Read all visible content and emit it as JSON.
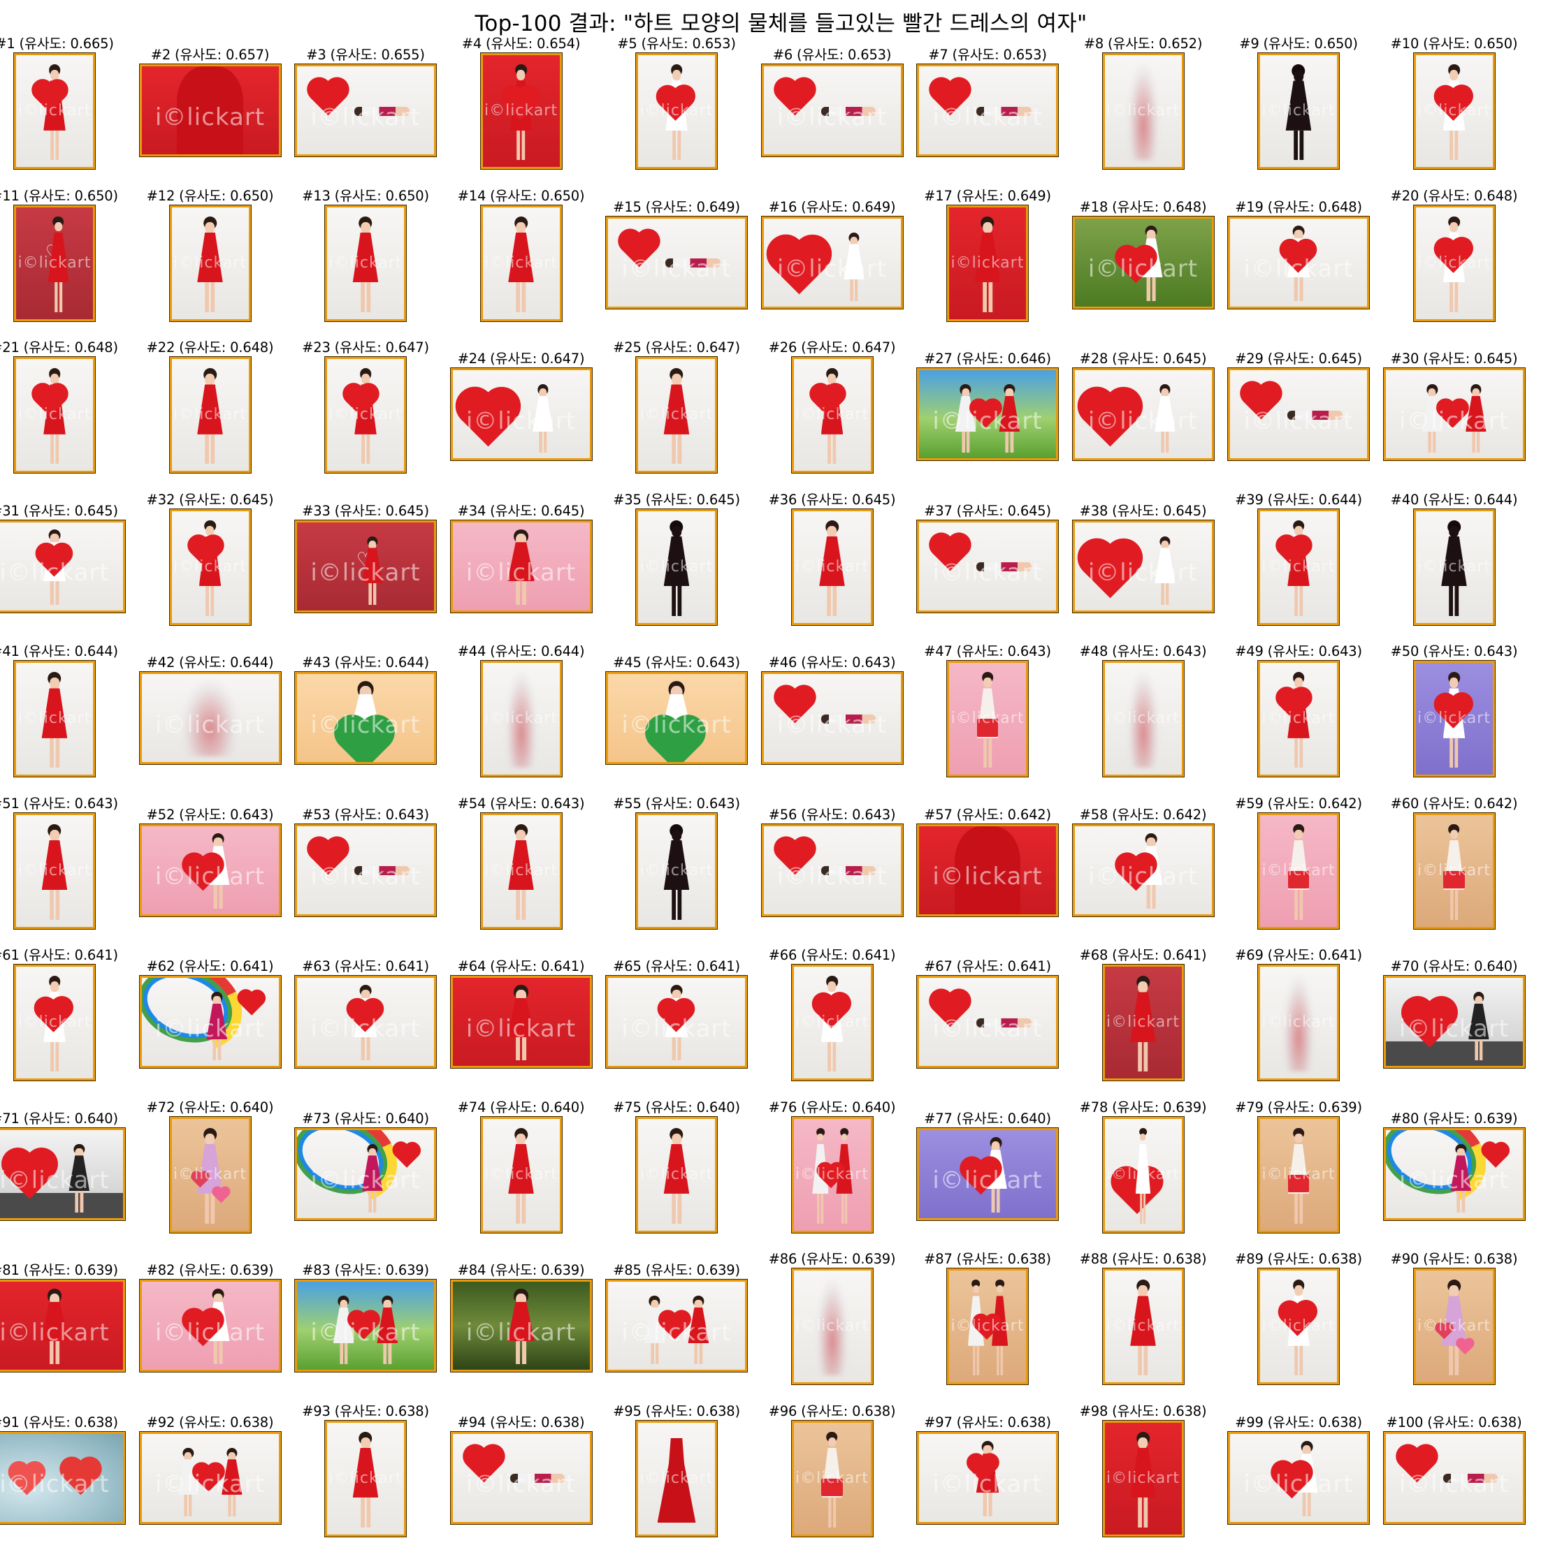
{
  "title": "Top-100 결과: \"하트 모양의 물체를 들고있는 빨간 드레스의 여자\"",
  "watermark": "i©lickart",
  "caption_prefix": "유사도",
  "results": [
    {
      "rank": 1,
      "score": "0.665",
      "caption": "#1 (유사도: 0.665)",
      "orientation": "portrait",
      "scene": "white",
      "subject": "woman-red-dress-heart"
    },
    {
      "rank": 2,
      "score": "0.657",
      "caption": "#2 (유사도: 0.657)",
      "orientation": "landscape",
      "scene": "red",
      "subject": "red-dress-closeup"
    },
    {
      "rank": 3,
      "score": "0.655",
      "caption": "#3 (유사도: 0.655)",
      "orientation": "landscape",
      "scene": "white",
      "subject": "floating-heart-balloon"
    },
    {
      "rank": 4,
      "score": "0.654",
      "caption": "#4 (유사도: 0.654)",
      "orientation": "portrait",
      "scene": "red",
      "subject": "woman-hand-heart"
    },
    {
      "rank": 5,
      "score": "0.653",
      "caption": "#5 (유사도: 0.653)",
      "orientation": "portrait",
      "scene": "white",
      "subject": "woman-heart-pillow"
    },
    {
      "rank": 6,
      "score": "0.653",
      "caption": "#6 (유사도: 0.653)",
      "orientation": "landscape",
      "scene": "white",
      "subject": "floating-heart-balloon"
    },
    {
      "rank": 7,
      "score": "0.653",
      "caption": "#7 (유사도: 0.653)",
      "orientation": "landscape",
      "scene": "white",
      "subject": "floating-heart-balloon"
    },
    {
      "rank": 8,
      "score": "0.652",
      "caption": "#8 (유사도: 0.652)",
      "orientation": "portrait",
      "scene": "white",
      "subject": "faded-silhouette"
    },
    {
      "rank": 9,
      "score": "0.650",
      "caption": "#9 (유사도: 0.650)",
      "orientation": "portrait",
      "scene": "white",
      "subject": "dark-silhouette"
    },
    {
      "rank": 10,
      "score": "0.650",
      "caption": "#10 (유사도: 0.650)",
      "orientation": "portrait",
      "scene": "white",
      "subject": "woman-heart-pillow"
    },
    {
      "rank": 11,
      "score": "0.650",
      "caption": "#11 (유사도: 0.650)",
      "orientation": "portrait",
      "scene": "darkred",
      "subject": "love-balloon"
    },
    {
      "rank": 12,
      "score": "0.650",
      "caption": "#12 (유사도: 0.650)",
      "orientation": "portrait",
      "scene": "white",
      "subject": "woman-red-dress"
    },
    {
      "rank": 13,
      "score": "0.650",
      "caption": "#13 (유사도: 0.650)",
      "orientation": "portrait",
      "scene": "white",
      "subject": "woman-red-dress"
    },
    {
      "rank": 14,
      "score": "0.650",
      "caption": "#14 (유사도: 0.650)",
      "orientation": "portrait",
      "scene": "white",
      "subject": "woman-red-dress"
    },
    {
      "rank": 15,
      "score": "0.649",
      "caption": "#15 (유사도: 0.649)",
      "orientation": "landscape",
      "scene": "white",
      "subject": "floating-heart-balloon"
    },
    {
      "rank": 16,
      "score": "0.649",
      "caption": "#16 (유사도: 0.649)",
      "orientation": "landscape",
      "scene": "white",
      "subject": "big-heart"
    },
    {
      "rank": 17,
      "score": "0.649",
      "caption": "#17 (유사도: 0.649)",
      "orientation": "portrait",
      "scene": "red",
      "subject": "woman-red-dress"
    },
    {
      "rank": 18,
      "score": "0.648",
      "caption": "#18 (유사도: 0.648)",
      "orientation": "landscape",
      "scene": "green",
      "subject": "woman-heart"
    },
    {
      "rank": 19,
      "score": "0.648",
      "caption": "#19 (유사도: 0.648)",
      "orientation": "landscape",
      "scene": "white",
      "subject": "child-heart"
    },
    {
      "rank": 20,
      "score": "0.648",
      "caption": "#20 (유사도: 0.648)",
      "orientation": "portrait",
      "scene": "white",
      "subject": "woman-heart-balloon"
    },
    {
      "rank": 21,
      "score": "0.648",
      "caption": "#21 (유사도: 0.648)",
      "orientation": "portrait",
      "scene": "white",
      "subject": "woman-red-dress-heart"
    },
    {
      "rank": 22,
      "score": "0.648",
      "caption": "#22 (유사도: 0.648)",
      "orientation": "portrait",
      "scene": "white",
      "subject": "woman-red-dress"
    },
    {
      "rank": 23,
      "score": "0.647",
      "caption": "#23 (유사도: 0.647)",
      "orientation": "portrait",
      "scene": "white",
      "subject": "woman-red-dress-heart"
    },
    {
      "rank": 24,
      "score": "0.647",
      "caption": "#24 (유사도: 0.647)",
      "orientation": "landscape",
      "scene": "white",
      "subject": "big-heart"
    },
    {
      "rank": 25,
      "score": "0.647",
      "caption": "#25 (유사도: 0.647)",
      "orientation": "portrait",
      "scene": "white",
      "subject": "woman-red-dress"
    },
    {
      "rank": 26,
      "score": "0.647",
      "caption": "#26 (유사도: 0.647)",
      "orientation": "portrait",
      "scene": "white",
      "subject": "woman-red-dress-heart"
    },
    {
      "rank": 27,
      "score": "0.646",
      "caption": "#27 (유사도: 0.646)",
      "orientation": "landscape",
      "scene": "sky",
      "subject": "couple-heart"
    },
    {
      "rank": 28,
      "score": "0.645",
      "caption": "#28 (유사도: 0.645)",
      "orientation": "landscape",
      "scene": "white",
      "subject": "big-heart"
    },
    {
      "rank": 29,
      "score": "0.645",
      "caption": "#29 (유사도: 0.645)",
      "orientation": "landscape",
      "scene": "white",
      "subject": "floating-heart-balloon"
    },
    {
      "rank": 30,
      "score": "0.645",
      "caption": "#30 (유사도: 0.645)",
      "orientation": "landscape",
      "scene": "white",
      "subject": "couple-heart"
    },
    {
      "rank": 31,
      "score": "0.645",
      "caption": "#31 (유사도: 0.645)",
      "orientation": "landscape",
      "scene": "white",
      "subject": "child-heart"
    },
    {
      "rank": 32,
      "score": "0.645",
      "caption": "#32 (유사도: 0.645)",
      "orientation": "portrait",
      "scene": "white",
      "subject": "woman-red-dress-heart"
    },
    {
      "rank": 33,
      "score": "0.645",
      "caption": "#33 (유사도: 0.645)",
      "orientation": "landscape",
      "scene": "darkred",
      "subject": "love-balloon"
    },
    {
      "rank": 34,
      "score": "0.645",
      "caption": "#34 (유사도: 0.645)",
      "orientation": "landscape",
      "scene": "pink",
      "subject": "woman-red-dress"
    },
    {
      "rank": 35,
      "score": "0.645",
      "caption": "#35 (유사도: 0.645)",
      "orientation": "portrait",
      "scene": "white",
      "subject": "dark-silhouette"
    },
    {
      "rank": 36,
      "score": "0.645",
      "caption": "#36 (유사도: 0.645)",
      "orientation": "portrait",
      "scene": "white",
      "subject": "woman-red-dress"
    },
    {
      "rank": 37,
      "score": "0.645",
      "caption": "#37 (유사도: 0.645)",
      "orientation": "landscape",
      "scene": "white",
      "subject": "floating-heart-balloon"
    },
    {
      "rank": 38,
      "score": "0.645",
      "caption": "#38 (유사도: 0.645)",
      "orientation": "landscape",
      "scene": "white",
      "subject": "big-heart"
    },
    {
      "rank": 39,
      "score": "0.644",
      "caption": "#39 (유사도: 0.644)",
      "orientation": "portrait",
      "scene": "white",
      "subject": "woman-red-dress-heart"
    },
    {
      "rank": 40,
      "score": "0.644",
      "caption": "#40 (유사도: 0.644)",
      "orientation": "portrait",
      "scene": "white",
      "subject": "dark-silhouette"
    },
    {
      "rank": 41,
      "score": "0.644",
      "caption": "#41 (유사도: 0.644)",
      "orientation": "portrait",
      "scene": "white",
      "subject": "woman-red-dress"
    },
    {
      "rank": 42,
      "score": "0.644",
      "caption": "#42 (유사도: 0.644)",
      "orientation": "landscape",
      "scene": "white",
      "subject": "faded-silhouette"
    },
    {
      "rank": 43,
      "score": "0.644",
      "caption": "#43 (유사도: 0.644)",
      "orientation": "landscape",
      "scene": "orange",
      "subject": "child-green-heart"
    },
    {
      "rank": 44,
      "score": "0.644",
      "caption": "#44 (유사도: 0.644)",
      "orientation": "portrait",
      "scene": "white",
      "subject": "faded-silhouette"
    },
    {
      "rank": 45,
      "score": "0.643",
      "caption": "#45 (유사도: 0.643)",
      "orientation": "landscape",
      "scene": "orange",
      "subject": "child-green-heart"
    },
    {
      "rank": 46,
      "score": "0.643",
      "caption": "#46 (유사도: 0.643)",
      "orientation": "landscape",
      "scene": "white",
      "subject": "floating-heart-balloon"
    },
    {
      "rank": 47,
      "score": "0.643",
      "caption": "#47 (유사도: 0.643)",
      "orientation": "portrait",
      "scene": "pink",
      "subject": "woman-gift"
    },
    {
      "rank": 48,
      "score": "0.643",
      "caption": "#48 (유사도: 0.643)",
      "orientation": "portrait",
      "scene": "white",
      "subject": "faded-silhouette"
    },
    {
      "rank": 49,
      "score": "0.643",
      "caption": "#49 (유사도: 0.643)",
      "orientation": "portrait",
      "scene": "white",
      "subject": "woman-red-dress-heart"
    },
    {
      "rank": 50,
      "score": "0.643",
      "caption": "#50 (유사도: 0.643)",
      "orientation": "portrait",
      "scene": "purple",
      "subject": "woman-heart-balloon"
    },
    {
      "rank": 51,
      "score": "0.643",
      "caption": "#51 (유사도: 0.643)",
      "orientation": "portrait",
      "scene": "white",
      "subject": "woman-red-dress"
    },
    {
      "rank": 52,
      "score": "0.643",
      "caption": "#52 (유사도: 0.643)",
      "orientation": "landscape",
      "scene": "pink",
      "subject": "woman-heart"
    },
    {
      "rank": 53,
      "score": "0.643",
      "caption": "#53 (유사도: 0.643)",
      "orientation": "landscape",
      "scene": "white",
      "subject": "floating-heart-balloon"
    },
    {
      "rank": 54,
      "score": "0.643",
      "caption": "#54 (유사도: 0.643)",
      "orientation": "portrait",
      "scene": "white",
      "subject": "woman-red-dress"
    },
    {
      "rank": 55,
      "score": "0.643",
      "caption": "#55 (유사도: 0.643)",
      "orientation": "portrait",
      "scene": "white",
      "subject": "dark-silhouette"
    },
    {
      "rank": 56,
      "score": "0.643",
      "caption": "#56 (유사도: 0.643)",
      "orientation": "landscape",
      "scene": "white",
      "subject": "floating-heart-balloon"
    },
    {
      "rank": 57,
      "score": "0.642",
      "caption": "#57 (유사도: 0.642)",
      "orientation": "landscape",
      "scene": "red",
      "subject": "red-dress-closeup"
    },
    {
      "rank": 58,
      "score": "0.642",
      "caption": "#58 (유사도: 0.642)",
      "orientation": "landscape",
      "scene": "white",
      "subject": "woman-heart"
    },
    {
      "rank": 59,
      "score": "0.642",
      "caption": "#59 (유사도: 0.642)",
      "orientation": "portrait",
      "scene": "pink",
      "subject": "woman-gift"
    },
    {
      "rank": 60,
      "score": "0.642",
      "caption": "#60 (유사도: 0.642)",
      "orientation": "portrait",
      "scene": "tan",
      "subject": "woman-gift"
    },
    {
      "rank": 61,
      "score": "0.641",
      "caption": "#61 (유사도: 0.641)",
      "orientation": "portrait",
      "scene": "white",
      "subject": "woman-heart"
    },
    {
      "rank": 62,
      "score": "0.641",
      "caption": "#62 (유사도: 0.641)",
      "orientation": "landscape",
      "scene": "white",
      "subject": "rainbow-heart"
    },
    {
      "rank": 63,
      "score": "0.641",
      "caption": "#63 (유사도: 0.641)",
      "orientation": "landscape",
      "scene": "white",
      "subject": "child-heart"
    },
    {
      "rank": 64,
      "score": "0.641",
      "caption": "#64 (유사도: 0.641)",
      "orientation": "landscape",
      "scene": "red",
      "subject": "woman-red-dress"
    },
    {
      "rank": 65,
      "score": "0.641",
      "caption": "#65 (유사도: 0.641)",
      "orientation": "landscape",
      "scene": "white",
      "subject": "child-heart"
    },
    {
      "rank": 66,
      "score": "0.641",
      "caption": "#66 (유사도: 0.641)",
      "orientation": "portrait",
      "scene": "white",
      "subject": "child-heart"
    },
    {
      "rank": 67,
      "score": "0.641",
      "caption": "#67 (유사도: 0.641)",
      "orientation": "landscape",
      "scene": "white",
      "subject": "floating-heart-balloon"
    },
    {
      "rank": 68,
      "score": "0.641",
      "caption": "#68 (유사도: 0.641)",
      "orientation": "portrait",
      "scene": "darkred",
      "subject": "woman-red-dress"
    },
    {
      "rank": 69,
      "score": "0.641",
      "caption": "#69 (유사도: 0.641)",
      "orientation": "portrait",
      "scene": "white",
      "subject": "faded-silhouette"
    },
    {
      "rank": 70,
      "score": "0.640",
      "caption": "#70 (유사도: 0.640)",
      "orientation": "landscape",
      "scene": "office",
      "subject": "office-heart"
    },
    {
      "rank": 71,
      "score": "0.640",
      "caption": "#71 (유사도: 0.640)",
      "orientation": "landscape",
      "scene": "office",
      "subject": "office-heart"
    },
    {
      "rank": 72,
      "score": "0.640",
      "caption": "#72 (유사도: 0.640)",
      "orientation": "portrait",
      "scene": "tan",
      "subject": "woman-hearts-dress"
    },
    {
      "rank": 73,
      "score": "0.640",
      "caption": "#73 (유사도: 0.640)",
      "orientation": "landscape",
      "scene": "white",
      "subject": "rainbow-heart"
    },
    {
      "rank": 74,
      "score": "0.640",
      "caption": "#74 (유사도: 0.640)",
      "orientation": "portrait",
      "scene": "white",
      "subject": "woman-red-dress"
    },
    {
      "rank": 75,
      "score": "0.640",
      "caption": "#75 (유사도: 0.640)",
      "orientation": "portrait",
      "scene": "white",
      "subject": "woman-red-dress"
    },
    {
      "rank": 76,
      "score": "0.640",
      "caption": "#76 (유사도: 0.640)",
      "orientation": "portrait",
      "scene": "pink",
      "subject": "couple-heart"
    },
    {
      "rank": 77,
      "score": "0.640",
      "caption": "#77 (유사도: 0.640)",
      "orientation": "landscape",
      "scene": "purple",
      "subject": "woman-heart"
    },
    {
      "rank": 78,
      "score": "0.639",
      "caption": "#78 (유사도: 0.639)",
      "orientation": "portrait",
      "scene": "white",
      "subject": "big-heart"
    },
    {
      "rank": 79,
      "score": "0.639",
      "caption": "#79 (유사도: 0.639)",
      "orientation": "portrait",
      "scene": "tan",
      "subject": "woman-gift"
    },
    {
      "rank": 80,
      "score": "0.639",
      "caption": "#80 (유사도: 0.639)",
      "orientation": "landscape",
      "scene": "white",
      "subject": "rainbow-heart"
    },
    {
      "rank": 81,
      "score": "0.639",
      "caption": "#81 (유사도: 0.639)",
      "orientation": "landscape",
      "scene": "red",
      "subject": "woman-red-dress"
    },
    {
      "rank": 82,
      "score": "0.639",
      "caption": "#82 (유사도: 0.639)",
      "orientation": "landscape",
      "scene": "pink",
      "subject": "woman-heart"
    },
    {
      "rank": 83,
      "score": "0.639",
      "caption": "#83 (유사도: 0.639)",
      "orientation": "landscape",
      "scene": "sky",
      "subject": "couple-heart"
    },
    {
      "rank": 84,
      "score": "0.639",
      "caption": "#84 (유사도: 0.639)",
      "orientation": "landscape",
      "scene": "forest",
      "subject": "woman-red-dress"
    },
    {
      "rank": 85,
      "score": "0.639",
      "caption": "#85 (유사도: 0.639)",
      "orientation": "landscape",
      "scene": "white",
      "subject": "couple-heart"
    },
    {
      "rank": 86,
      "score": "0.639",
      "caption": "#86 (유사도: 0.639)",
      "orientation": "portrait",
      "scene": "white",
      "subject": "faded-silhouette"
    },
    {
      "rank": 87,
      "score": "0.638",
      "caption": "#87 (유사도: 0.638)",
      "orientation": "portrait",
      "scene": "tan",
      "subject": "couple-heart"
    },
    {
      "rank": 88,
      "score": "0.638",
      "caption": "#88 (유사도: 0.638)",
      "orientation": "portrait",
      "scene": "white",
      "subject": "woman-red-dress"
    },
    {
      "rank": 89,
      "score": "0.638",
      "caption": "#89 (유사도: 0.638)",
      "orientation": "portrait",
      "scene": "white",
      "subject": "woman-heart"
    },
    {
      "rank": 90,
      "score": "0.638",
      "caption": "#90 (유사도: 0.638)",
      "orientation": "portrait",
      "scene": "tan",
      "subject": "woman-hearts-dress"
    },
    {
      "rank": 91,
      "score": "0.638",
      "caption": "#91 (유사도: 0.638)",
      "orientation": "landscape",
      "scene": "blur",
      "subject": "hanging-hearts"
    },
    {
      "rank": 92,
      "score": "0.638",
      "caption": "#92 (유사도: 0.638)",
      "orientation": "landscape",
      "scene": "white",
      "subject": "couple-heart"
    },
    {
      "rank": 93,
      "score": "0.638",
      "caption": "#93 (유사도: 0.638)",
      "orientation": "portrait",
      "scene": "white",
      "subject": "woman-red-dress"
    },
    {
      "rank": 94,
      "score": "0.638",
      "caption": "#94 (유사도: 0.638)",
      "orientation": "landscape",
      "scene": "white",
      "subject": "floating-heart-balloon"
    },
    {
      "rank": 95,
      "score": "0.638",
      "caption": "#95 (유사도: 0.638)",
      "orientation": "portrait",
      "scene": "white",
      "subject": "red-dress-hanger"
    },
    {
      "rank": 96,
      "score": "0.638",
      "caption": "#96 (유사도: 0.638)",
      "orientation": "portrait",
      "scene": "tan",
      "subject": "woman-gift"
    },
    {
      "rank": 97,
      "score": "0.638",
      "caption": "#97 (유사도: 0.638)",
      "orientation": "landscape",
      "scene": "white",
      "subject": "woman-red-dress-heart"
    },
    {
      "rank": 98,
      "score": "0.638",
      "caption": "#98 (유사도: 0.638)",
      "orientation": "portrait",
      "scene": "red",
      "subject": "woman-red-dress"
    },
    {
      "rank": 99,
      "score": "0.638",
      "caption": "#99 (유사도: 0.638)",
      "orientation": "landscape",
      "scene": "white",
      "subject": "woman-heart"
    },
    {
      "rank": 100,
      "score": "0.638",
      "caption": "#100 (유사도: 0.638)",
      "orientation": "landscape",
      "scene": "white",
      "subject": "floating-heart-balloon"
    }
  ]
}
